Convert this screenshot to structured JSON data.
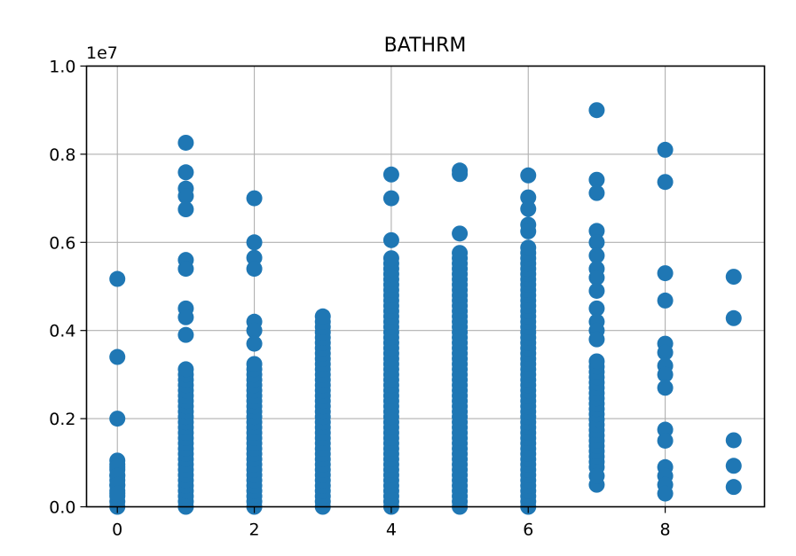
{
  "chart_data": {
    "type": "scatter",
    "title": "BATHRM",
    "xlabel": "",
    "ylabel": "",
    "y_multiplier": "1e7",
    "xlim": [
      -0.45,
      9.45
    ],
    "ylim": [
      0.0,
      1.0
    ],
    "grid": true,
    "point_color": "#1f77b4",
    "x_ticks": [
      0,
      2,
      4,
      6,
      8
    ],
    "x_tick_labels": [
      "0",
      "2",
      "4",
      "6",
      "8"
    ],
    "y_ticks": [
      0.0,
      0.2,
      0.4,
      0.6,
      0.8,
      1.0
    ],
    "y_tick_labels": [
      "0.0",
      "0.2",
      "0.4",
      "0.6",
      "0.8",
      "1.0"
    ],
    "series": [
      {
        "dense_ranges": [
          [
            0,
            0.0,
            0.105
          ],
          [
            1,
            0.0,
            0.315
          ],
          [
            2,
            0.0,
            0.33
          ],
          [
            3,
            0.0,
            0.44
          ],
          [
            4,
            0.0,
            0.57
          ],
          [
            5,
            0.0,
            0.58
          ],
          [
            6,
            0.0,
            0.59
          ],
          [
            7,
            0.09,
            0.33
          ]
        ],
        "points": [
          [
            0,
            0.517
          ],
          [
            0,
            0.34
          ],
          [
            0,
            0.2
          ],
          [
            0,
            0.105
          ],
          [
            0,
            0.09
          ],
          [
            0,
            0.07
          ],
          [
            0,
            0.05
          ],
          [
            0,
            0.03
          ],
          [
            1,
            0.826
          ],
          [
            1,
            0.759
          ],
          [
            1,
            0.722
          ],
          [
            1,
            0.705
          ],
          [
            1,
            0.675
          ],
          [
            1,
            0.56
          ],
          [
            1,
            0.54
          ],
          [
            1,
            0.45
          ],
          [
            1,
            0.43
          ],
          [
            1,
            0.39
          ],
          [
            2,
            0.7
          ],
          [
            2,
            0.6
          ],
          [
            2,
            0.565
          ],
          [
            2,
            0.54
          ],
          [
            2,
            0.42
          ],
          [
            2,
            0.4
          ],
          [
            2,
            0.37
          ],
          [
            4,
            0.754
          ],
          [
            4,
            0.7
          ],
          [
            4,
            0.605
          ],
          [
            5,
            0.763
          ],
          [
            5,
            0.755
          ],
          [
            5,
            0.62
          ],
          [
            6,
            0.752
          ],
          [
            6,
            0.702
          ],
          [
            6,
            0.676
          ],
          [
            6,
            0.64
          ],
          [
            6,
            0.625
          ],
          [
            7,
            0.9
          ],
          [
            7,
            0.742
          ],
          [
            7,
            0.712
          ],
          [
            7,
            0.626
          ],
          [
            7,
            0.6
          ],
          [
            7,
            0.57
          ],
          [
            7,
            0.54
          ],
          [
            7,
            0.52
          ],
          [
            7,
            0.49
          ],
          [
            7,
            0.45
          ],
          [
            7,
            0.42
          ],
          [
            7,
            0.4
          ],
          [
            7,
            0.38
          ],
          [
            7,
            0.05
          ],
          [
            7,
            0.07
          ],
          [
            8,
            0.81
          ],
          [
            8,
            0.737
          ],
          [
            8,
            0.53
          ],
          [
            8,
            0.468
          ],
          [
            8,
            0.37
          ],
          [
            8,
            0.35
          ],
          [
            8,
            0.32
          ],
          [
            8,
            0.3
          ],
          [
            8,
            0.27
          ],
          [
            8,
            0.175
          ],
          [
            8,
            0.15
          ],
          [
            8,
            0.09
          ],
          [
            8,
            0.07
          ],
          [
            8,
            0.05
          ],
          [
            8,
            0.03
          ],
          [
            9,
            0.522
          ],
          [
            9,
            0.428
          ],
          [
            9,
            0.151
          ],
          [
            9,
            0.093
          ],
          [
            9,
            0.045
          ]
        ]
      }
    ]
  }
}
